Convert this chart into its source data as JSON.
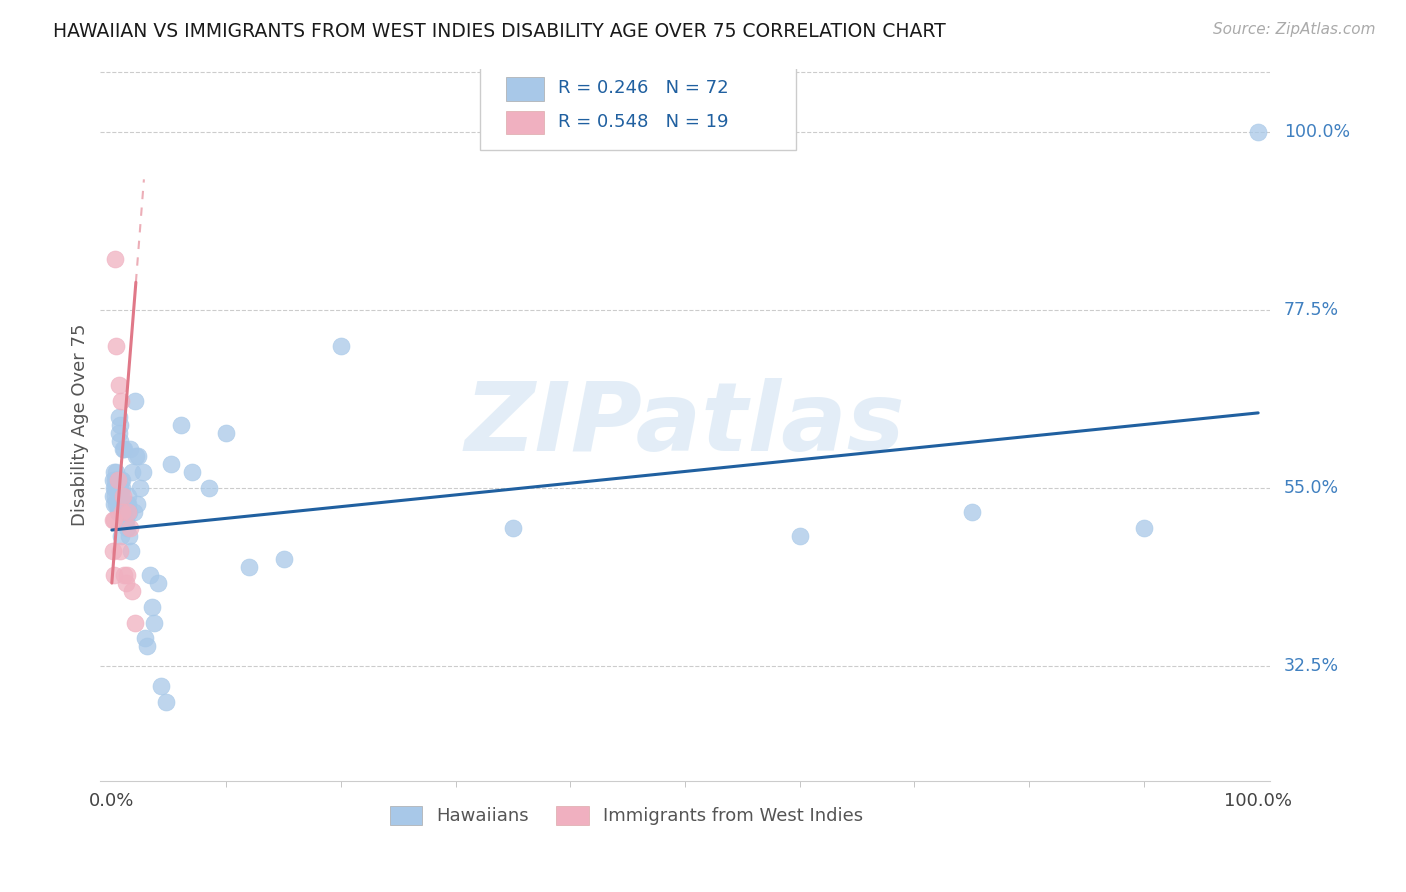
{
  "title": "HAWAIIAN VS IMMIGRANTS FROM WEST INDIES DISABILITY AGE OVER 75 CORRELATION CHART",
  "source": "Source: ZipAtlas.com",
  "ylabel_label": "Disability Age Over 75",
  "legend_label1": "Hawaiians",
  "legend_label2": "Immigrants from West Indies",
  "R1": "0.246",
  "N1": "72",
  "R2": "0.548",
  "N2": "19",
  "color_hawaiian": "#a8c8e8",
  "color_westindies": "#f0b0c0",
  "color_line1": "#2060a0",
  "color_line2": "#e07888",
  "watermark": "ZIPatlas",
  "xlim": [
    0.0,
    1.0
  ],
  "ylim": [
    0.18,
    1.08
  ],
  "ytick_vals": [
    0.325,
    0.55,
    0.775,
    1.0
  ],
  "ytick_labels": [
    "32.5%",
    "55.0%",
    "77.5%",
    "100.0%"
  ],
  "xtick_vals": [
    0.0,
    1.0
  ],
  "xtick_labels": [
    "0.0%",
    "100.0%"
  ],
  "hawaiians_x": [
    0.001,
    0.001,
    0.002,
    0.002,
    0.002,
    0.003,
    0.003,
    0.003,
    0.004,
    0.004,
    0.004,
    0.004,
    0.005,
    0.005,
    0.005,
    0.005,
    0.005,
    0.006,
    0.006,
    0.006,
    0.006,
    0.007,
    0.007,
    0.007,
    0.008,
    0.008,
    0.008,
    0.009,
    0.009,
    0.01,
    0.01,
    0.011,
    0.011,
    0.012,
    0.012,
    0.013,
    0.013,
    0.014,
    0.014,
    0.015,
    0.015,
    0.016,
    0.017,
    0.018,
    0.019,
    0.02,
    0.021,
    0.022,
    0.023,
    0.025,
    0.027,
    0.029,
    0.031,
    0.033,
    0.035,
    0.037,
    0.04,
    0.043,
    0.047,
    0.052,
    0.06,
    0.07,
    0.085,
    0.1,
    0.12,
    0.15,
    0.2,
    0.35,
    0.6,
    0.75,
    0.9,
    1.0
  ],
  "hawaiians_y": [
    0.54,
    0.56,
    0.53,
    0.55,
    0.57,
    0.54,
    0.56,
    0.55,
    0.53,
    0.55,
    0.57,
    0.56,
    0.54,
    0.56,
    0.55,
    0.53,
    0.52,
    0.62,
    0.64,
    0.55,
    0.54,
    0.61,
    0.63,
    0.55,
    0.54,
    0.56,
    0.49,
    0.56,
    0.55,
    0.52,
    0.6,
    0.52,
    0.6,
    0.51,
    0.53,
    0.5,
    0.53,
    0.54,
    0.53,
    0.49,
    0.52,
    0.6,
    0.47,
    0.57,
    0.52,
    0.66,
    0.59,
    0.53,
    0.59,
    0.55,
    0.57,
    0.36,
    0.35,
    0.44,
    0.4,
    0.38,
    0.43,
    0.3,
    0.28,
    0.58,
    0.63,
    0.57,
    0.55,
    0.62,
    0.45,
    0.46,
    0.73,
    0.5,
    0.49,
    0.52,
    0.5,
    1.0
  ],
  "westindies_x": [
    0.001,
    0.001,
    0.002,
    0.002,
    0.003,
    0.004,
    0.005,
    0.006,
    0.007,
    0.008,
    0.009,
    0.01,
    0.011,
    0.012,
    0.013,
    0.014,
    0.016,
    0.018,
    0.02
  ],
  "westindies_y": [
    0.51,
    0.47,
    0.51,
    0.44,
    0.84,
    0.73,
    0.56,
    0.68,
    0.47,
    0.66,
    0.52,
    0.54,
    0.44,
    0.43,
    0.44,
    0.52,
    0.5,
    0.42,
    0.38
  ],
  "line_h_x0": 0.0,
  "line_h_y0": 0.497,
  "line_h_x1": 1.0,
  "line_h_y1": 0.645,
  "line_wi_x0": 0.0,
  "line_wi_y0": 0.43,
  "line_wi_x1": 0.021,
  "line_wi_y1": 0.81,
  "line_wi_dash_x0": 0.0,
  "line_wi_dash_y0": 0.43,
  "line_wi_dash_x1": 0.028,
  "line_wi_dash_y1": 0.94
}
